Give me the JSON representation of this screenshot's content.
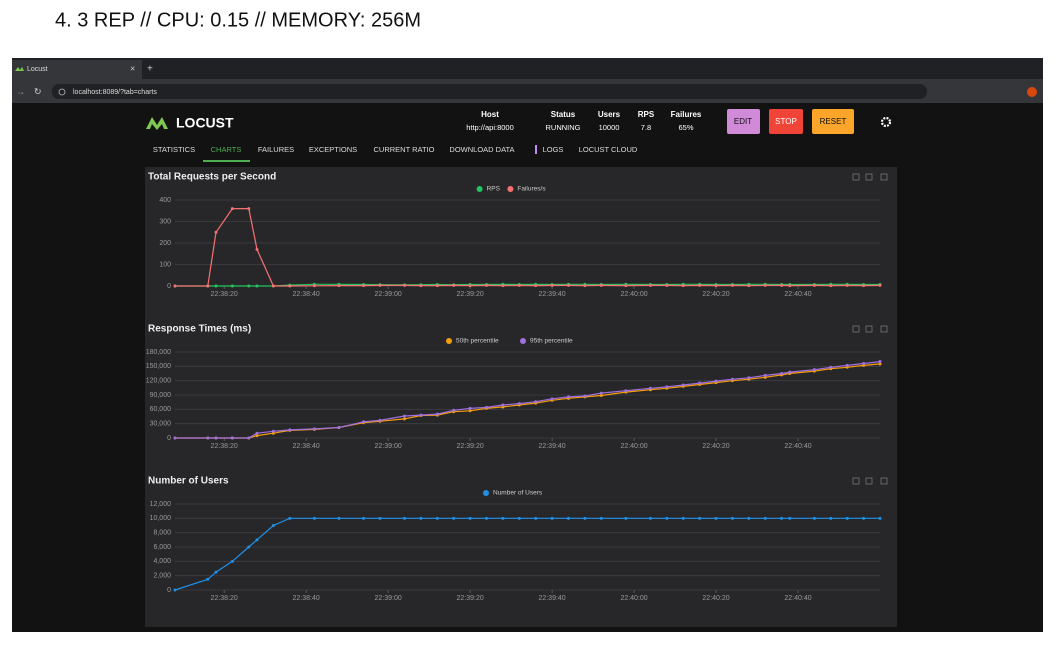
{
  "heading": "4.   3 REP // CPU: 0.15 // MEMORY: 256M",
  "browser": {
    "tab": "Locust",
    "close": "×",
    "new_tab": "+",
    "url": "localhost:8089/?tab=charts"
  },
  "header": {
    "brand": "LOCUST",
    "stats": [
      {
        "label": "Host",
        "value": "http://api:8000"
      },
      {
        "label": "Status",
        "value": "RUNNING"
      },
      {
        "label": "Users",
        "value": "10000"
      },
      {
        "label": "RPS",
        "value": "7.8"
      },
      {
        "label": "Failures",
        "value": "65%"
      }
    ],
    "buttons": [
      "EDIT",
      "STOP",
      "RESET"
    ]
  },
  "nav": [
    "STATISTICS",
    "CHARTS",
    "FAILURES",
    "EXCEPTIONS",
    "CURRENT RATIO",
    "DOWNLOAD DATA",
    "LOGS",
    "LOCUST CLOUD"
  ],
  "chart_data": [
    {
      "type": "line",
      "title": "Total Requests per Second",
      "x": [
        81488,
        81496,
        81498,
        81502,
        81506,
        81508,
        81512,
        81516,
        81522,
        81528,
        81534,
        81538,
        81544,
        81548,
        81552,
        81556,
        81560,
        81564,
        81568,
        81572,
        81576,
        81580,
        81584,
        81588,
        81592,
        81598,
        81604,
        81608,
        81612,
        81616,
        81620,
        81624,
        81628,
        81632,
        81636,
        81638,
        81644,
        81648,
        81652,
        81656,
        81660
      ],
      "xlim": [
        81488,
        81660
      ],
      "xticks": [
        {
          "value": 81500,
          "label": "22:38:20"
        },
        {
          "value": 81520,
          "label": "22:38:40"
        },
        {
          "value": 81540,
          "label": "22:39:00"
        },
        {
          "value": 81560,
          "label": "22:39:20"
        },
        {
          "value": 81580,
          "label": "22:39:40"
        },
        {
          "value": 81600,
          "label": "22:40:00"
        },
        {
          "value": 81620,
          "label": "22:40:20"
        },
        {
          "value": 81640,
          "label": "22:40:40"
        }
      ],
      "ylim": [
        0,
        400
      ],
      "yticks": [
        0,
        100,
        200,
        300,
        400
      ],
      "grid": true,
      "series": [
        {
          "name": "RPS",
          "color": "#22c55e",
          "values": [
            0,
            0,
            0,
            0,
            0,
            0,
            0,
            4,
            8,
            8,
            7,
            6,
            5,
            6,
            7,
            6,
            7,
            7,
            8,
            7,
            8,
            7,
            8,
            8,
            7,
            8,
            7,
            7,
            8,
            8,
            7,
            7,
            8,
            8,
            7,
            7,
            7,
            8,
            8,
            7,
            7
          ]
        },
        {
          "name": "Failures/s",
          "color": "#f87171",
          "values": [
            0,
            0,
            250,
            360,
            360,
            170,
            0,
            0,
            1,
            2,
            2,
            3,
            3,
            2,
            2,
            3,
            2,
            3,
            2,
            3,
            2,
            3,
            3,
            2,
            3,
            2,
            3,
            3,
            2,
            3,
            2,
            3,
            2,
            3,
            3,
            2,
            3,
            2,
            3,
            2,
            3
          ]
        }
      ]
    },
    {
      "type": "line",
      "title": "Response Times (ms)",
      "x": [
        81488,
        81496,
        81498,
        81502,
        81506,
        81508,
        81512,
        81516,
        81522,
        81528,
        81534,
        81538,
        81544,
        81548,
        81552,
        81556,
        81560,
        81564,
        81568,
        81572,
        81576,
        81580,
        81584,
        81588,
        81592,
        81598,
        81604,
        81608,
        81612,
        81616,
        81620,
        81624,
        81628,
        81632,
        81636,
        81638,
        81644,
        81648,
        81652,
        81656,
        81660
      ],
      "xlim": [
        81488,
        81660
      ],
      "xticks": [
        {
          "value": 81500,
          "label": "22:38:20"
        },
        {
          "value": 81520,
          "label": "22:38:40"
        },
        {
          "value": 81540,
          "label": "22:39:00"
        },
        {
          "value": 81560,
          "label": "22:39:20"
        },
        {
          "value": 81580,
          "label": "22:39:40"
        },
        {
          "value": 81600,
          "label": "22:40:00"
        },
        {
          "value": 81620,
          "label": "22:40:20"
        },
        {
          "value": 81640,
          "label": "22:40:40"
        }
      ],
      "ylim": [
        0,
        180000
      ],
      "yticks": [
        0,
        {
          "value": 30000,
          "label": "30,000"
        },
        {
          "value": 60000,
          "label": "60,000"
        },
        {
          "value": 90000,
          "label": "90,000"
        },
        {
          "value": 120000,
          "label": "120,000"
        },
        {
          "value": 150000,
          "label": "150,000"
        },
        {
          "value": 180000,
          "label": "180,000"
        }
      ],
      "grid": true,
      "series": [
        {
          "name": "50th percentile",
          "color": "#f59e0b",
          "values": [
            0,
            0,
            0,
            0,
            0,
            5000,
            10000,
            16000,
            18000,
            22000,
            32000,
            35000,
            40000,
            47000,
            48000,
            55000,
            57000,
            62000,
            65000,
            69000,
            73000,
            79000,
            83000,
            86000,
            89000,
            96000,
            101000,
            104000,
            108000,
            112000,
            116000,
            120000,
            123000,
            127000,
            132000,
            135000,
            140000,
            145000,
            148000,
            152000,
            155000
          ]
        },
        {
          "name": "95th percentile",
          "color": "#a070e0",
          "values": [
            0,
            0,
            0,
            0,
            0,
            10000,
            14000,
            17000,
            19000,
            22000,
            34000,
            37000,
            46000,
            48000,
            50000,
            58000,
            62000,
            64000,
            69000,
            72000,
            76000,
            82000,
            86000,
            88000,
            94000,
            99000,
            104000,
            107000,
            111000,
            115000,
            119000,
            123000,
            126000,
            131000,
            135000,
            138000,
            143000,
            148000,
            152000,
            156000,
            160000
          ]
        }
      ]
    },
    {
      "type": "line",
      "title": "Number of Users",
      "x": [
        81488,
        81496,
        81498,
        81502,
        81506,
        81508,
        81512,
        81516,
        81522,
        81528,
        81534,
        81538,
        81544,
        81548,
        81552,
        81556,
        81560,
        81564,
        81568,
        81572,
        81576,
        81580,
        81584,
        81588,
        81592,
        81598,
        81604,
        81608,
        81612,
        81616,
        81620,
        81624,
        81628,
        81632,
        81636,
        81638,
        81644,
        81648,
        81652,
        81656,
        81660
      ],
      "xlim": [
        81488,
        81660
      ],
      "xticks": [
        {
          "value": 81500,
          "label": "22:38:20"
        },
        {
          "value": 81520,
          "label": "22:38:40"
        },
        {
          "value": 81540,
          "label": "22:39:00"
        },
        {
          "value": 81560,
          "label": "22:39:20"
        },
        {
          "value": 81580,
          "label": "22:39:40"
        },
        {
          "value": 81600,
          "label": "22:40:00"
        },
        {
          "value": 81620,
          "label": "22:40:20"
        },
        {
          "value": 81640,
          "label": "22:40:40"
        }
      ],
      "ylim": [
        0,
        12000
      ],
      "yticks": [
        0,
        {
          "value": 2000,
          "label": "2,000"
        },
        {
          "value": 4000,
          "label": "4,000"
        },
        {
          "value": 6000,
          "label": "6,000"
        },
        {
          "value": 8000,
          "label": "8,000"
        },
        {
          "value": 10000,
          "label": "10,000"
        },
        {
          "value": 12000,
          "label": "12,000"
        }
      ],
      "grid": true,
      "series": [
        {
          "name": "Number of Users",
          "color": "#1e90e8",
          "values": [
            0,
            1500,
            2500,
            4000,
            6000,
            7000,
            9000,
            10000,
            10000,
            10000,
            10000,
            10000,
            10000,
            10000,
            10000,
            10000,
            10000,
            10000,
            10000,
            10000,
            10000,
            10000,
            10000,
            10000,
            10000,
            10000,
            10000,
            10000,
            10000,
            10000,
            10000,
            10000,
            10000,
            10000,
            10000,
            10000,
            10000,
            10000,
            10000,
            10000,
            10000
          ]
        }
      ]
    }
  ]
}
